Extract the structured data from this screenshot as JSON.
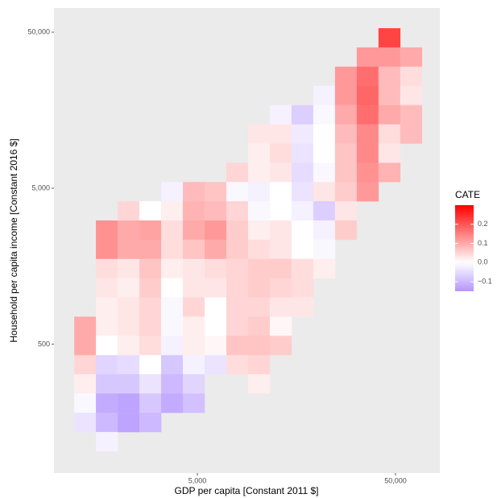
{
  "chart_data": {
    "type": "heatmap",
    "xlabel": "GDP per capita [Constant 2011 $]",
    "ylabel": "Household per capita income [Constant 2016 $]",
    "x": [
      1355,
      1744,
      2246,
      2891,
      3722,
      4792,
      6169,
      7942,
      10224,
      13163,
      16946,
      21816,
      28086,
      36158,
      46550,
      59928
    ],
    "y": [
      46030,
      34660,
      26100,
      19650,
      14800,
      11140,
      8390,
      6320,
      4758,
      3583,
      2698,
      2032,
      1530,
      1152,
      867,
      653,
      492,
      370,
      279,
      210,
      158,
      119
    ],
    "values": [
      [
        null,
        null,
        null,
        null,
        null,
        null,
        null,
        null,
        null,
        null,
        null,
        null,
        null,
        null,
        0.22,
        null
      ],
      [
        null,
        null,
        null,
        null,
        null,
        null,
        null,
        null,
        null,
        null,
        null,
        null,
        null,
        0.12,
        0.12,
        0.1
      ],
      [
        null,
        null,
        null,
        null,
        null,
        null,
        null,
        null,
        null,
        null,
        null,
        null,
        0.12,
        0.17,
        0.08,
        0.04
      ],
      [
        null,
        null,
        null,
        null,
        null,
        null,
        null,
        null,
        null,
        null,
        null,
        -0.02,
        0.12,
        0.18,
        0.08,
        0.03
      ],
      [
        null,
        null,
        null,
        null,
        null,
        null,
        null,
        null,
        null,
        -0.02,
        -0.07,
        -0.01,
        0.1,
        0.17,
        0.1,
        0.08
      ],
      [
        null,
        null,
        null,
        null,
        null,
        null,
        null,
        null,
        0.03,
        0.03,
        -0.03,
        0.0,
        0.08,
        0.14,
        0.04,
        0.08
      ],
      [
        null,
        null,
        null,
        null,
        null,
        null,
        null,
        null,
        0.02,
        0.04,
        -0.04,
        0.0,
        0.07,
        0.14,
        0.03,
        null
      ],
      [
        null,
        null,
        null,
        null,
        null,
        null,
        null,
        0.05,
        0.02,
        0.03,
        -0.05,
        -0.01,
        0.07,
        0.13,
        0.09,
        null
      ],
      [
        null,
        null,
        null,
        null,
        -0.02,
        0.08,
        0.07,
        -0.01,
        -0.02,
        0.0,
        -0.04,
        0.03,
        0.06,
        0.12,
        null,
        null
      ],
      [
        null,
        null,
        0.05,
        0.0,
        0.02,
        0.09,
        0.08,
        0.05,
        -0.01,
        0.0,
        -0.02,
        -0.07,
        0.03,
        null,
        null,
        null
      ],
      [
        null,
        0.13,
        0.1,
        0.11,
        0.04,
        0.1,
        0.12,
        0.06,
        0.02,
        0.03,
        0.0,
        -0.02,
        0.06,
        null,
        null,
        null
      ],
      [
        null,
        0.13,
        0.1,
        0.1,
        0.04,
        0.07,
        0.1,
        0.06,
        0.04,
        0.03,
        0.0,
        -0.01,
        null,
        null,
        null,
        null
      ],
      [
        null,
        0.04,
        0.03,
        0.07,
        0.02,
        0.03,
        0.04,
        0.05,
        0.06,
        0.06,
        0.04,
        0.02,
        null,
        null,
        null,
        null
      ],
      [
        null,
        0.03,
        0.02,
        0.06,
        0.0,
        0.03,
        0.03,
        0.05,
        0.06,
        0.05,
        0.04,
        null,
        null,
        null,
        null,
        null
      ],
      [
        null,
        0.02,
        0.03,
        0.05,
        -0.01,
        0.05,
        0.0,
        0.05,
        0.05,
        0.03,
        0.03,
        null,
        null,
        null,
        null,
        null
      ],
      [
        0.1,
        0.02,
        0.03,
        0.05,
        -0.01,
        0.02,
        0.0,
        0.05,
        0.06,
        0.01,
        null,
        null,
        null,
        null,
        null,
        null
      ],
      [
        0.1,
        0.0,
        0.02,
        0.04,
        -0.02,
        0.02,
        0.01,
        0.07,
        0.07,
        0.06,
        null,
        null,
        null,
        null,
        null,
        null
      ],
      [
        0.05,
        -0.06,
        -0.05,
        0.0,
        -0.08,
        -0.02,
        -0.04,
        0.04,
        0.05,
        null,
        null,
        null,
        null,
        null,
        null,
        null
      ],
      [
        0.02,
        -0.08,
        -0.08,
        -0.04,
        -0.1,
        -0.06,
        null,
        null,
        0.02,
        null,
        null,
        null,
        null,
        null,
        null,
        null
      ],
      [
        -0.01,
        -0.12,
        -0.13,
        -0.08,
        -0.12,
        -0.09,
        null,
        null,
        null,
        null,
        null,
        null,
        null,
        null,
        null,
        null
      ],
      [
        -0.04,
        -0.1,
        -0.13,
        -0.1,
        null,
        null,
        null,
        null,
        null,
        null,
        null,
        null,
        null,
        null,
        null,
        null
      ],
      [
        null,
        -0.02,
        null,
        null,
        null,
        null,
        null,
        null,
        null,
        null,
        null,
        null,
        null,
        null,
        null,
        null
      ]
    ],
    "xlim": [
      944,
      83700
    ],
    "ylim": [
      74.8,
      71400
    ],
    "xscale": "log",
    "yscale": "log",
    "xticks": [
      {
        "value": 5000,
        "label": "5,000"
      },
      {
        "value": 50000,
        "label": "50,000"
      }
    ],
    "yticks": [
      500,
      {
        "value": 5000,
        "label": "5,000"
      },
      {
        "value": 50000,
        "label": "50,000"
      }
    ],
    "grid": false,
    "colors": {
      "low": "#6a2cff",
      "mid": "#ffffff",
      "high": "#ff0000"
    },
    "colorbar": {
      "title": "CATE",
      "lim": [
        -0.15,
        0.3
      ],
      "ticks": [
        {
          "value": -0.1,
          "label": "−0.1"
        },
        {
          "value": 0,
          "label": "0.0"
        },
        0.1,
        0.2
      ]
    },
    "legend": "right"
  }
}
